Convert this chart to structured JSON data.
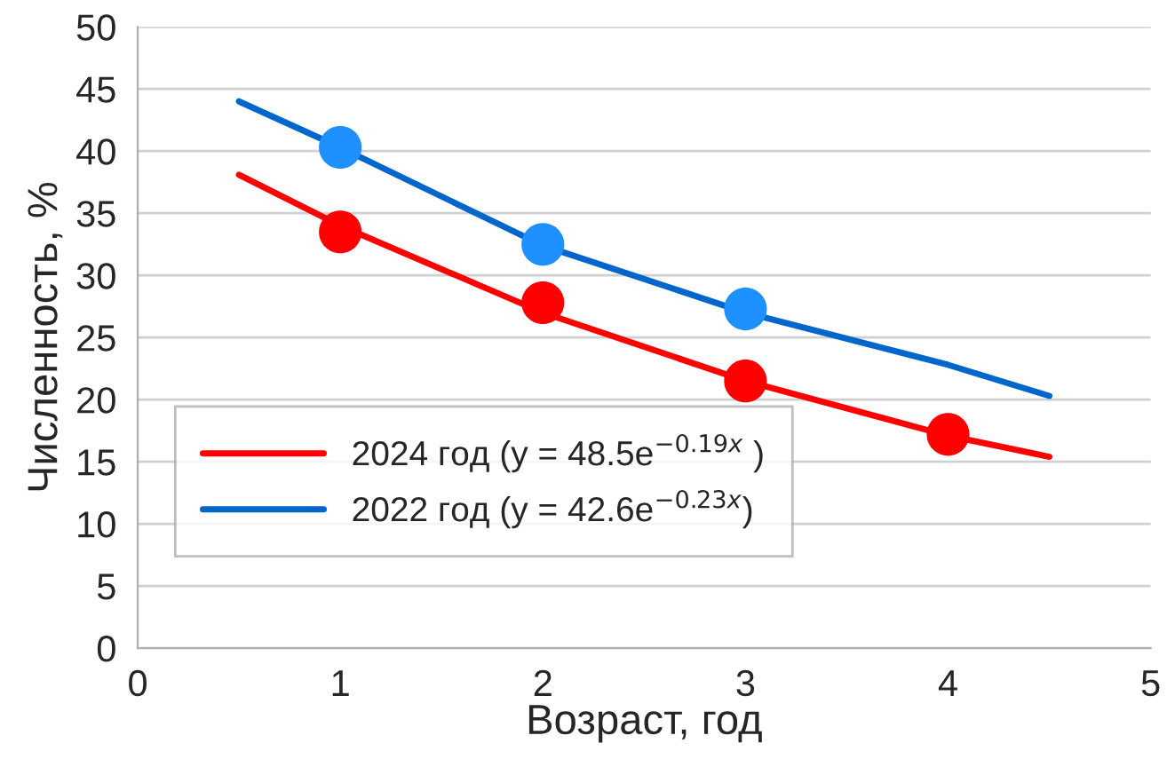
{
  "chart_data": {
    "type": "scatter",
    "xlabel": "Возраст, год",
    "ylabel": "Численность, %",
    "xlim": [
      0,
      5
    ],
    "xticks": [
      0,
      1,
      2,
      3,
      4,
      5
    ],
    "ylim": [
      0,
      50
    ],
    "yticks": [
      0,
      5,
      10,
      15,
      20,
      25,
      30,
      35,
      40,
      45,
      50
    ],
    "grid": "y",
    "legend": "bottom left",
    "series": [
      {
        "type": "line",
        "name": "2024 год (y = 48.5e$^{−0.19x}$ )",
        "color": "#ff0000",
        "x": [
          0.5,
          1,
          2,
          3,
          4,
          4.5
        ],
        "values": [
          38.1,
          34.0,
          27.0,
          21.5,
          17.1,
          15.4
        ],
        "marker": "none"
      },
      {
        "type": "line",
        "name": "2022 год (y = 42.6e$^{−0.23x}$)",
        "color": "#0066cc",
        "x": [
          0.5,
          1,
          2,
          3,
          4,
          4.5
        ],
        "values": [
          44.0,
          40.3,
          32.4,
          27.0,
          22.8,
          20.3
        ],
        "marker": "none"
      },
      {
        "color": "#ff0000",
        "x": [
          1,
          2,
          3,
          4
        ],
        "values": [
          33.5,
          27.8,
          21.5,
          17.2
        ],
        "marker": "circle"
      },
      {
        "color": "#1e90ff",
        "x": [
          1,
          2,
          3
        ],
        "values": [
          40.3,
          32.5,
          27.3
        ],
        "marker": "circle"
      }
    ]
  }
}
